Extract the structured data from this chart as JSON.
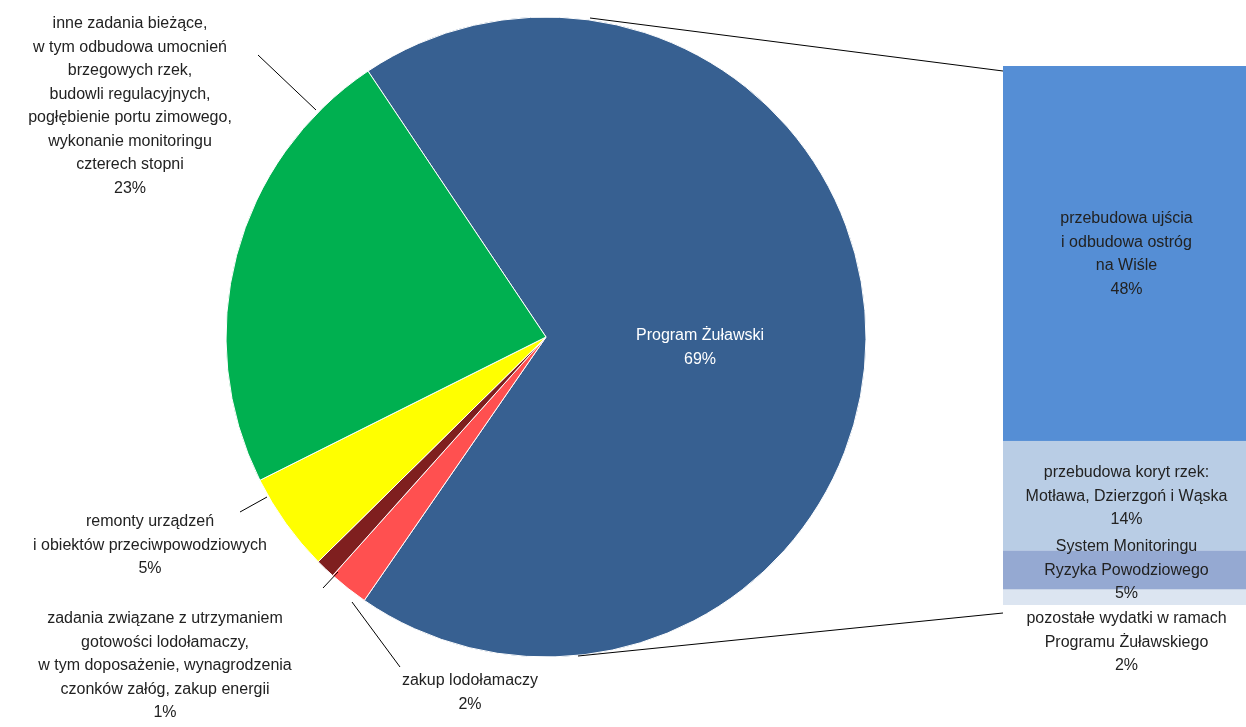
{
  "chart_data": [
    {
      "type": "pie",
      "categories": [
        "Program Żuławski",
        "zakup lodołamaczy",
        "zadania związane z utrzymaniem\ngotowości lodołamaczy,\nw tym doposażenie, wynagrodzenia\nczonków załóg, zakup energii",
        "remonty urządzeń\ni obiektów przeciwpowodziowych",
        "inne zadania bieżące,\nw tym odbudowa umocnień\nbrzegowych rzek,\nbudowli regulacyjnych,\npogłębienie portu zimowego,\nwykonanie monitoringu\nczterech stopni"
      ],
      "values": [
        69,
        2,
        1,
        5,
        23
      ],
      "value_labels": [
        "69%",
        "2%",
        "1%",
        "5%",
        "23%"
      ],
      "colors": [
        "#376091",
        "#ff5050",
        "#7f1f1f",
        "#ffff00",
        "#00b050"
      ]
    },
    {
      "type": "bar",
      "stacked": true,
      "categories": [
        null
      ],
      "series": [
        {
          "name": "pozostałe wydatki w ramach\nProgramu Żuławskiego",
          "color": "#dce5f1",
          "values": [
            2
          ],
          "value_labels": [
            "2%"
          ]
        },
        {
          "name": "System Monitoringu\nRyzyka Powodziowego",
          "color": "#95a9d2",
          "values": [
            5
          ],
          "value_labels": [
            "5%"
          ]
        },
        {
          "name": "przebudowa koryt rzek:\nMotława, Dzierzgoń i Wąska",
          "color": "#b9cde5",
          "values": [
            14
          ],
          "value_labels": [
            "14%"
          ]
        },
        {
          "name": "przebudowa ujścia\ni odbudowa ostróg\nna Wiśle",
          "color": "#558ed5",
          "values": [
            48
          ],
          "value_labels": [
            "48%"
          ]
        }
      ]
    }
  ]
}
